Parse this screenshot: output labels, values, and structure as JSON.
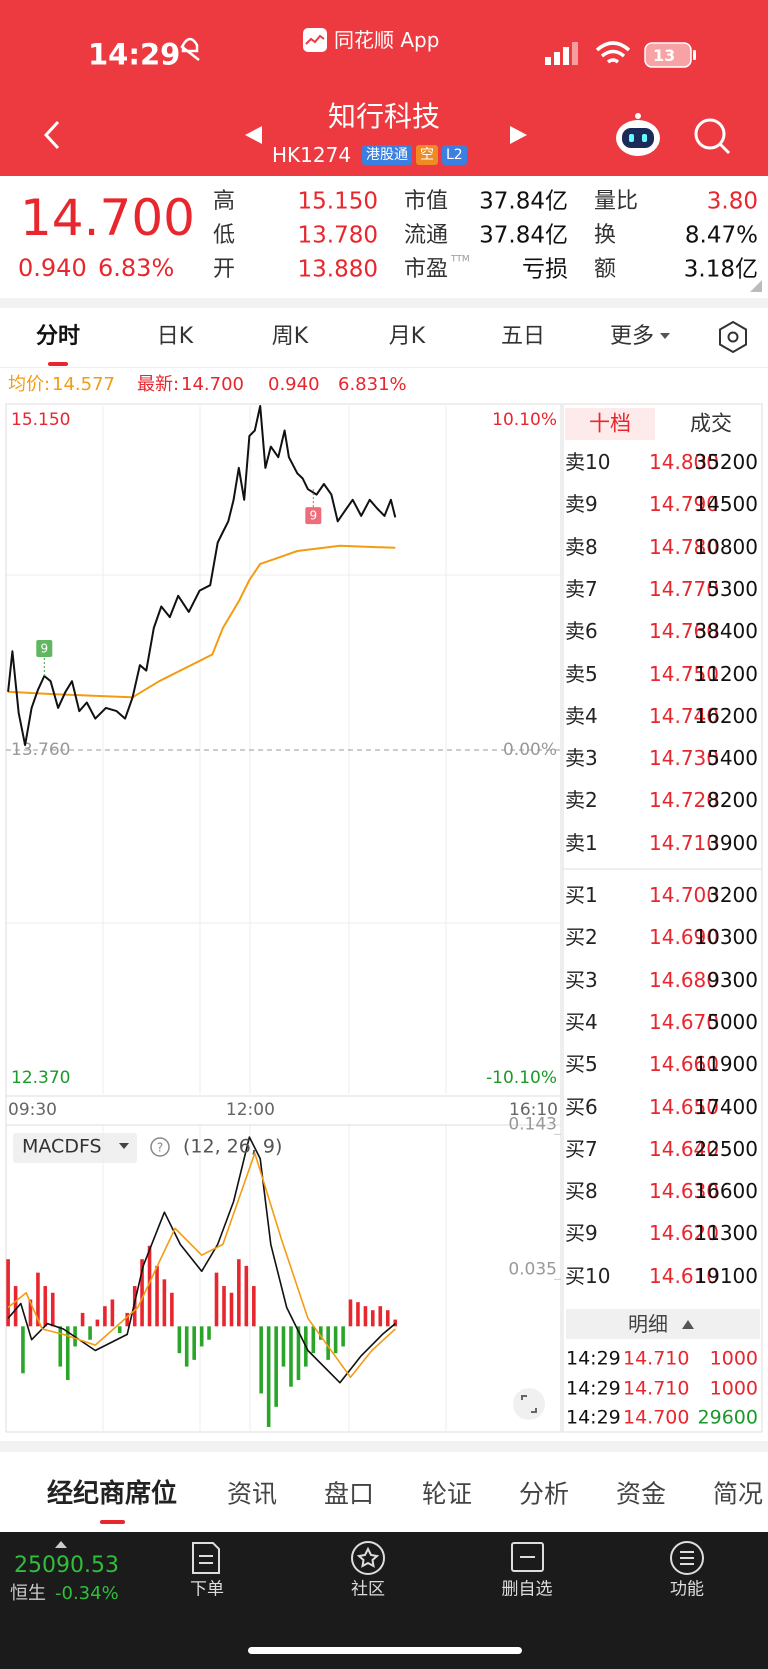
{
  "status_bar": {
    "time": "14:29",
    "app": "同花顺 App",
    "battery": "13"
  },
  "header": {
    "title": "知行科技",
    "code": "HK1274",
    "tags": [
      {
        "text": "港股通",
        "color": "#3b7fe0"
      },
      {
        "text": "空",
        "color": "#f08a24"
      },
      {
        "text": "L2",
        "color": "#3b7fe0"
      }
    ]
  },
  "quote": {
    "price": "14.700",
    "change": "0.940",
    "change_pct": "6.83%",
    "fields": [
      {
        "label": "高",
        "value": "15.150",
        "color": "#e8262e"
      },
      {
        "label": "低",
        "value": "13.780",
        "color": "#e8262e"
      },
      {
        "label": "开",
        "value": "13.880",
        "color": "#e8262e"
      },
      {
        "label": "市值",
        "value": "37.84亿",
        "color": "#111111"
      },
      {
        "label": "流通",
        "value": "37.84亿",
        "color": "#111111"
      },
      {
        "label": "市盈",
        "sup": "TTM",
        "value": "亏损",
        "color": "#111111"
      },
      {
        "label": "量比",
        "value": "3.80",
        "color": "#e8262e"
      },
      {
        "label": "换",
        "value": "8.47%",
        "color": "#111111"
      },
      {
        "label": "额",
        "value": "3.18亿",
        "color": "#111111"
      }
    ]
  },
  "tabs": [
    "分时",
    "日K",
    "周K",
    "月K",
    "五日",
    "更多"
  ],
  "summary": {
    "avg": "14.577",
    "latest": "14.700",
    "change": "0.940",
    "change_pct": "6.831%"
  },
  "chart_data": [
    {
      "type": "line",
      "xlim": [
        0,
        340
      ],
      "xticks": [
        {
          "value": 0,
          "label": "09:30"
        },
        {
          "value": 150,
          "label": "12:00"
        },
        {
          "value": 340,
          "label": "16:10"
        }
      ],
      "ylim": [
        12.37,
        15.15
      ],
      "yticks": [
        {
          "value": 15.15,
          "label": "15.150"
        },
        {
          "value": 13.76,
          "label": "13.760"
        },
        {
          "value": 12.37,
          "label": "12.370"
        }
      ],
      "y2lim": [
        -10.1,
        10.1
      ],
      "y2ticks": [
        {
          "value": 10.1,
          "label": "10.10%"
        },
        {
          "value": 0,
          "label": "0.00%"
        },
        {
          "value": -10.1,
          "label": "-10.10%"
        }
      ],
      "series": [
        {
          "name": "最新:",
          "color": "#111111",
          "x": [
            1.3,
            3.9,
            7.8,
            11.7,
            15.7,
            19.6,
            23.5,
            27.4,
            32.0,
            36.5,
            40.5,
            45.0,
            49.6,
            54.8,
            61.3,
            67.9,
            73.1,
            77.7,
            82.2,
            86.1,
            90.7,
            95.3,
            100.5,
            105.7,
            112.2,
            118.8,
            125.3,
            129.9,
            133.1,
            136.4,
            139.7,
            142.9,
            146.2,
            149.4,
            152.7,
            156.0,
            159.2,
            162.5,
            167.1,
            171.0,
            173.6,
            178.8,
            182.1,
            185.3,
            190.6,
            195.1,
            199.7,
            203.6,
            208.2,
            212.8,
            218.0,
            223.2,
            227.8,
            232.3,
            236.2,
            238.9
          ],
          "values": [
            13.995,
            14.159,
            13.909,
            13.78,
            13.93,
            14.003,
            14.059,
            14.038,
            13.93,
            13.995,
            14.038,
            13.917,
            13.952,
            13.887,
            13.93,
            13.917,
            13.887,
            13.973,
            14.103,
            14.081,
            14.253,
            14.34,
            14.297,
            14.383,
            14.318,
            14.404,
            14.426,
            14.598,
            14.641,
            14.684,
            14.771,
            14.9,
            14.771,
            15.029,
            15.051,
            15.15,
            14.9,
            14.986,
            14.943,
            15.051,
            14.943,
            14.878,
            14.857,
            14.814,
            14.792,
            14.835,
            14.792,
            14.684,
            14.728,
            14.771,
            14.706,
            14.771,
            14.736,
            14.706,
            14.771,
            14.7
          ]
        },
        {
          "name": "均价:",
          "color": "#f39c12",
          "x": [
            1.3,
            28.7,
            77.7,
            94.0,
            126.6,
            133.1,
            142.9,
            149.4,
            156.0,
            165.8,
            178.8,
            204.9,
            238.9
          ],
          "values": [
            13.995,
            13.986,
            13.973,
            14.038,
            14.146,
            14.253,
            14.361,
            14.447,
            14.512,
            14.534,
            14.564,
            14.585,
            14.577
          ]
        }
      ],
      "markers": [
        {
          "text": "9",
          "x": 23.5,
          "y": 14.059,
          "color": "#3aa53a",
          "placement": "above"
        },
        {
          "text": "9",
          "x": 188.6,
          "y": 14.814,
          "color": "#e8485a",
          "placement": "below"
        }
      ]
    },
    {
      "type": "combo",
      "title": "MACDFS",
      "params": "(12, 26, 9)",
      "xlim": [
        0,
        340
      ],
      "ylim": [
        -0.078,
        0.15
      ],
      "yticks": [
        0.143,
        0.035
      ],
      "series": [
        {
          "type": "bar",
          "color": "#e8262e",
          "negative_color": "#2aa52a",
          "x": [
            1.3,
            5.9,
            10.4,
            15.0,
            19.6,
            24.1,
            28.7,
            33.3,
            37.9,
            42.4,
            47.0,
            51.6,
            56.1,
            60.7,
            65.3,
            69.8,
            74.4,
            79.0,
            83.5,
            88.1,
            92.7,
            97.2,
            101.8,
            106.4,
            110.9,
            115.5,
            120.1,
            124.6,
            129.2,
            133.8,
            138.4,
            142.9,
            147.5,
            152.1,
            156.6,
            161.2,
            165.8,
            170.3,
            174.9,
            179.5,
            184.0,
            188.6,
            193.2,
            197.7,
            202.3,
            206.9,
            211.4,
            216.0,
            220.6,
            225.1,
            229.7,
            234.3,
            238.9
          ],
          "values": [
            0.05,
            0.03,
            -0.035,
            0.02,
            0.04,
            0.03,
            0.025,
            -0.03,
            -0.04,
            -0.015,
            0.01,
            -0.01,
            0.005,
            0.015,
            0.02,
            -0.005,
            0.01,
            0.03,
            0.05,
            0.06,
            0.045,
            0.035,
            0.025,
            -0.02,
            -0.03,
            -0.025,
            -0.015,
            -0.01,
            0.04,
            0.03,
            0.025,
            0.05,
            0.045,
            0.03,
            -0.05,
            -0.075,
            -0.06,
            -0.03,
            -0.045,
            -0.04,
            -0.03,
            -0.02,
            -0.01,
            -0.025,
            -0.02,
            -0.015,
            0.02,
            0.018,
            0.015,
            0.012,
            0.015,
            0.012,
            0.005
          ]
        },
        {
          "type": "line",
          "color": "#111111",
          "x": [
            1.3,
            9.1,
            15.7,
            25.5,
            35.2,
            54.8,
            74.4,
            84.2,
            97.2,
            107.0,
            120.1,
            129.9,
            139.7,
            149.4,
            156.0,
            162.5,
            172.3,
            185.3,
            204.9,
            218.0,
            231.0,
            238.9
          ],
          "values": [
            0.006,
            0.017,
            -0.01,
            0.002,
            -0.002,
            -0.018,
            -0.006,
            0.045,
            0.085,
            0.061,
            0.041,
            0.061,
            0.093,
            0.141,
            0.125,
            0.061,
            0.014,
            -0.018,
            -0.042,
            -0.022,
            -0.006,
            0.002
          ]
        },
        {
          "type": "line",
          "color": "#f39c12",
          "x": [
            1.3,
            12.4,
            22.2,
            35.2,
            54.8,
            80.9,
            103.8,
            120.1,
            133.1,
            152.7,
            169.0,
            185.3,
            211.4,
            224.5,
            238.9
          ],
          "values": [
            0.014,
            0.025,
            -0.002,
            -0.006,
            -0.014,
            0.014,
            0.073,
            0.053,
            0.061,
            0.129,
            0.065,
            0.006,
            -0.038,
            -0.018,
            -0.002
          ]
        }
      ]
    }
  ],
  "order_book": {
    "tabs": [
      "十档",
      "成交"
    ],
    "asks": [
      {
        "label": "卖10",
        "price": "14.800",
        "volume": "35200"
      },
      {
        "label": "卖9",
        "price": "14.790",
        "volume": "14500"
      },
      {
        "label": "卖8",
        "price": "14.780",
        "volume": "10800"
      },
      {
        "label": "卖7",
        "price": "14.770",
        "volume": "5300"
      },
      {
        "label": "卖6",
        "price": "14.760",
        "volume": "38400"
      },
      {
        "label": "卖5",
        "price": "14.750",
        "volume": "11200"
      },
      {
        "label": "卖4",
        "price": "14.740",
        "volume": "16200"
      },
      {
        "label": "卖3",
        "price": "14.730",
        "volume": "5400"
      },
      {
        "label": "卖2",
        "price": "14.720",
        "volume": "8200"
      },
      {
        "label": "卖1",
        "price": "14.710",
        "volume": "3900"
      }
    ],
    "bids": [
      {
        "label": "买1",
        "price": "14.700",
        "volume": "3200"
      },
      {
        "label": "买2",
        "price": "14.690",
        "volume": "10300"
      },
      {
        "label": "买3",
        "price": "14.680",
        "volume": "9300"
      },
      {
        "label": "买4",
        "price": "14.670",
        "volume": "5000"
      },
      {
        "label": "买5",
        "price": "14.660",
        "volume": "11900"
      },
      {
        "label": "买6",
        "price": "14.650",
        "volume": "17400"
      },
      {
        "label": "买7",
        "price": "14.640",
        "volume": "22500"
      },
      {
        "label": "买8",
        "price": "14.630",
        "volume": "16600"
      },
      {
        "label": "买9",
        "price": "14.620",
        "volume": "11300"
      },
      {
        "label": "买10",
        "price": "14.610",
        "volume": "19100"
      }
    ],
    "detail_title": "明细",
    "trades": [
      {
        "time": "14:29",
        "price": "14.710",
        "volume": "1000",
        "color": "#e8262e"
      },
      {
        "time": "14:29",
        "price": "14.710",
        "volume": "1000",
        "color": "#e8262e"
      },
      {
        "time": "14:29",
        "price": "14.700",
        "volume": "29600",
        "color": "#1a9a2a"
      }
    ]
  },
  "bottom_tabs": [
    "经纪商席位",
    "资讯",
    "盘口",
    "轮证",
    "分析",
    "资金",
    "简况"
  ],
  "footer": {
    "index_value": "25090.53",
    "index_name": "恒生",
    "index_change": "-0.34%",
    "actions": [
      "下单",
      "社区",
      "删自选",
      "功能"
    ]
  }
}
